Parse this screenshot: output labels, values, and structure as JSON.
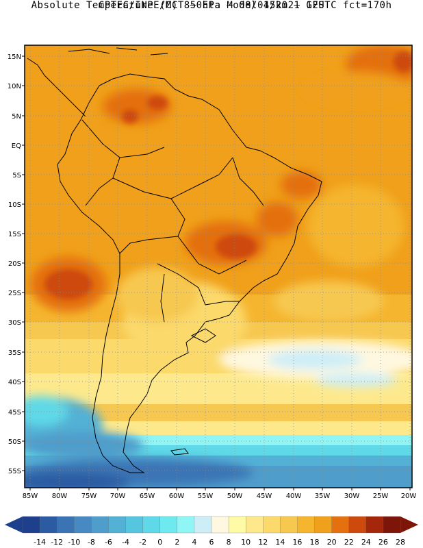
{
  "header": {
    "line1": "CPTEC/INPE/MCT –  Eta Model 15km – GFS",
    "line2": "Absolute Temperature (C) 850hPa – 08/04/2021 12UTC fct=170h"
  },
  "axes": {
    "lat_labels": [
      "15N",
      "10N",
      "5N",
      "EQ",
      "5S",
      "10S",
      "15S",
      "20S",
      "25S",
      "30S",
      "35S",
      "40S",
      "45S",
      "50S",
      "55S"
    ],
    "lon_labels": [
      "85W",
      "80W",
      "75W",
      "70W",
      "65W",
      "60W",
      "55W",
      "50W",
      "45W",
      "40W",
      "35W",
      "30W",
      "25W",
      "20W"
    ]
  },
  "colorbar": {
    "labels": [
      "-14",
      "-12",
      "-10",
      "-8",
      "-6",
      "-4",
      "-2",
      "0",
      "2",
      "4",
      "6",
      "8",
      "10",
      "12",
      "14",
      "16",
      "18",
      "20",
      "22",
      "24",
      "26",
      "28"
    ],
    "colors": [
      "#1d3f8c",
      "#2b5ba3",
      "#3a74b5",
      "#4789c2",
      "#4f9dcb",
      "#53b1d6",
      "#56c6e0",
      "#5fd9e8",
      "#6ee9ef",
      "#8ff5f5",
      "#cdeef7",
      "#fff8e0",
      "#fffaa6",
      "#fde98c",
      "#fbd96a",
      "#f7c850",
      "#f5b52f",
      "#f0a01a",
      "#e4700f",
      "#cd4a0c",
      "#a5270b",
      "#7d1508"
    ]
  },
  "icons": {
    "left_arrow": "triangle-left-icon",
    "right_arrow": "triangle-right-icon"
  }
}
